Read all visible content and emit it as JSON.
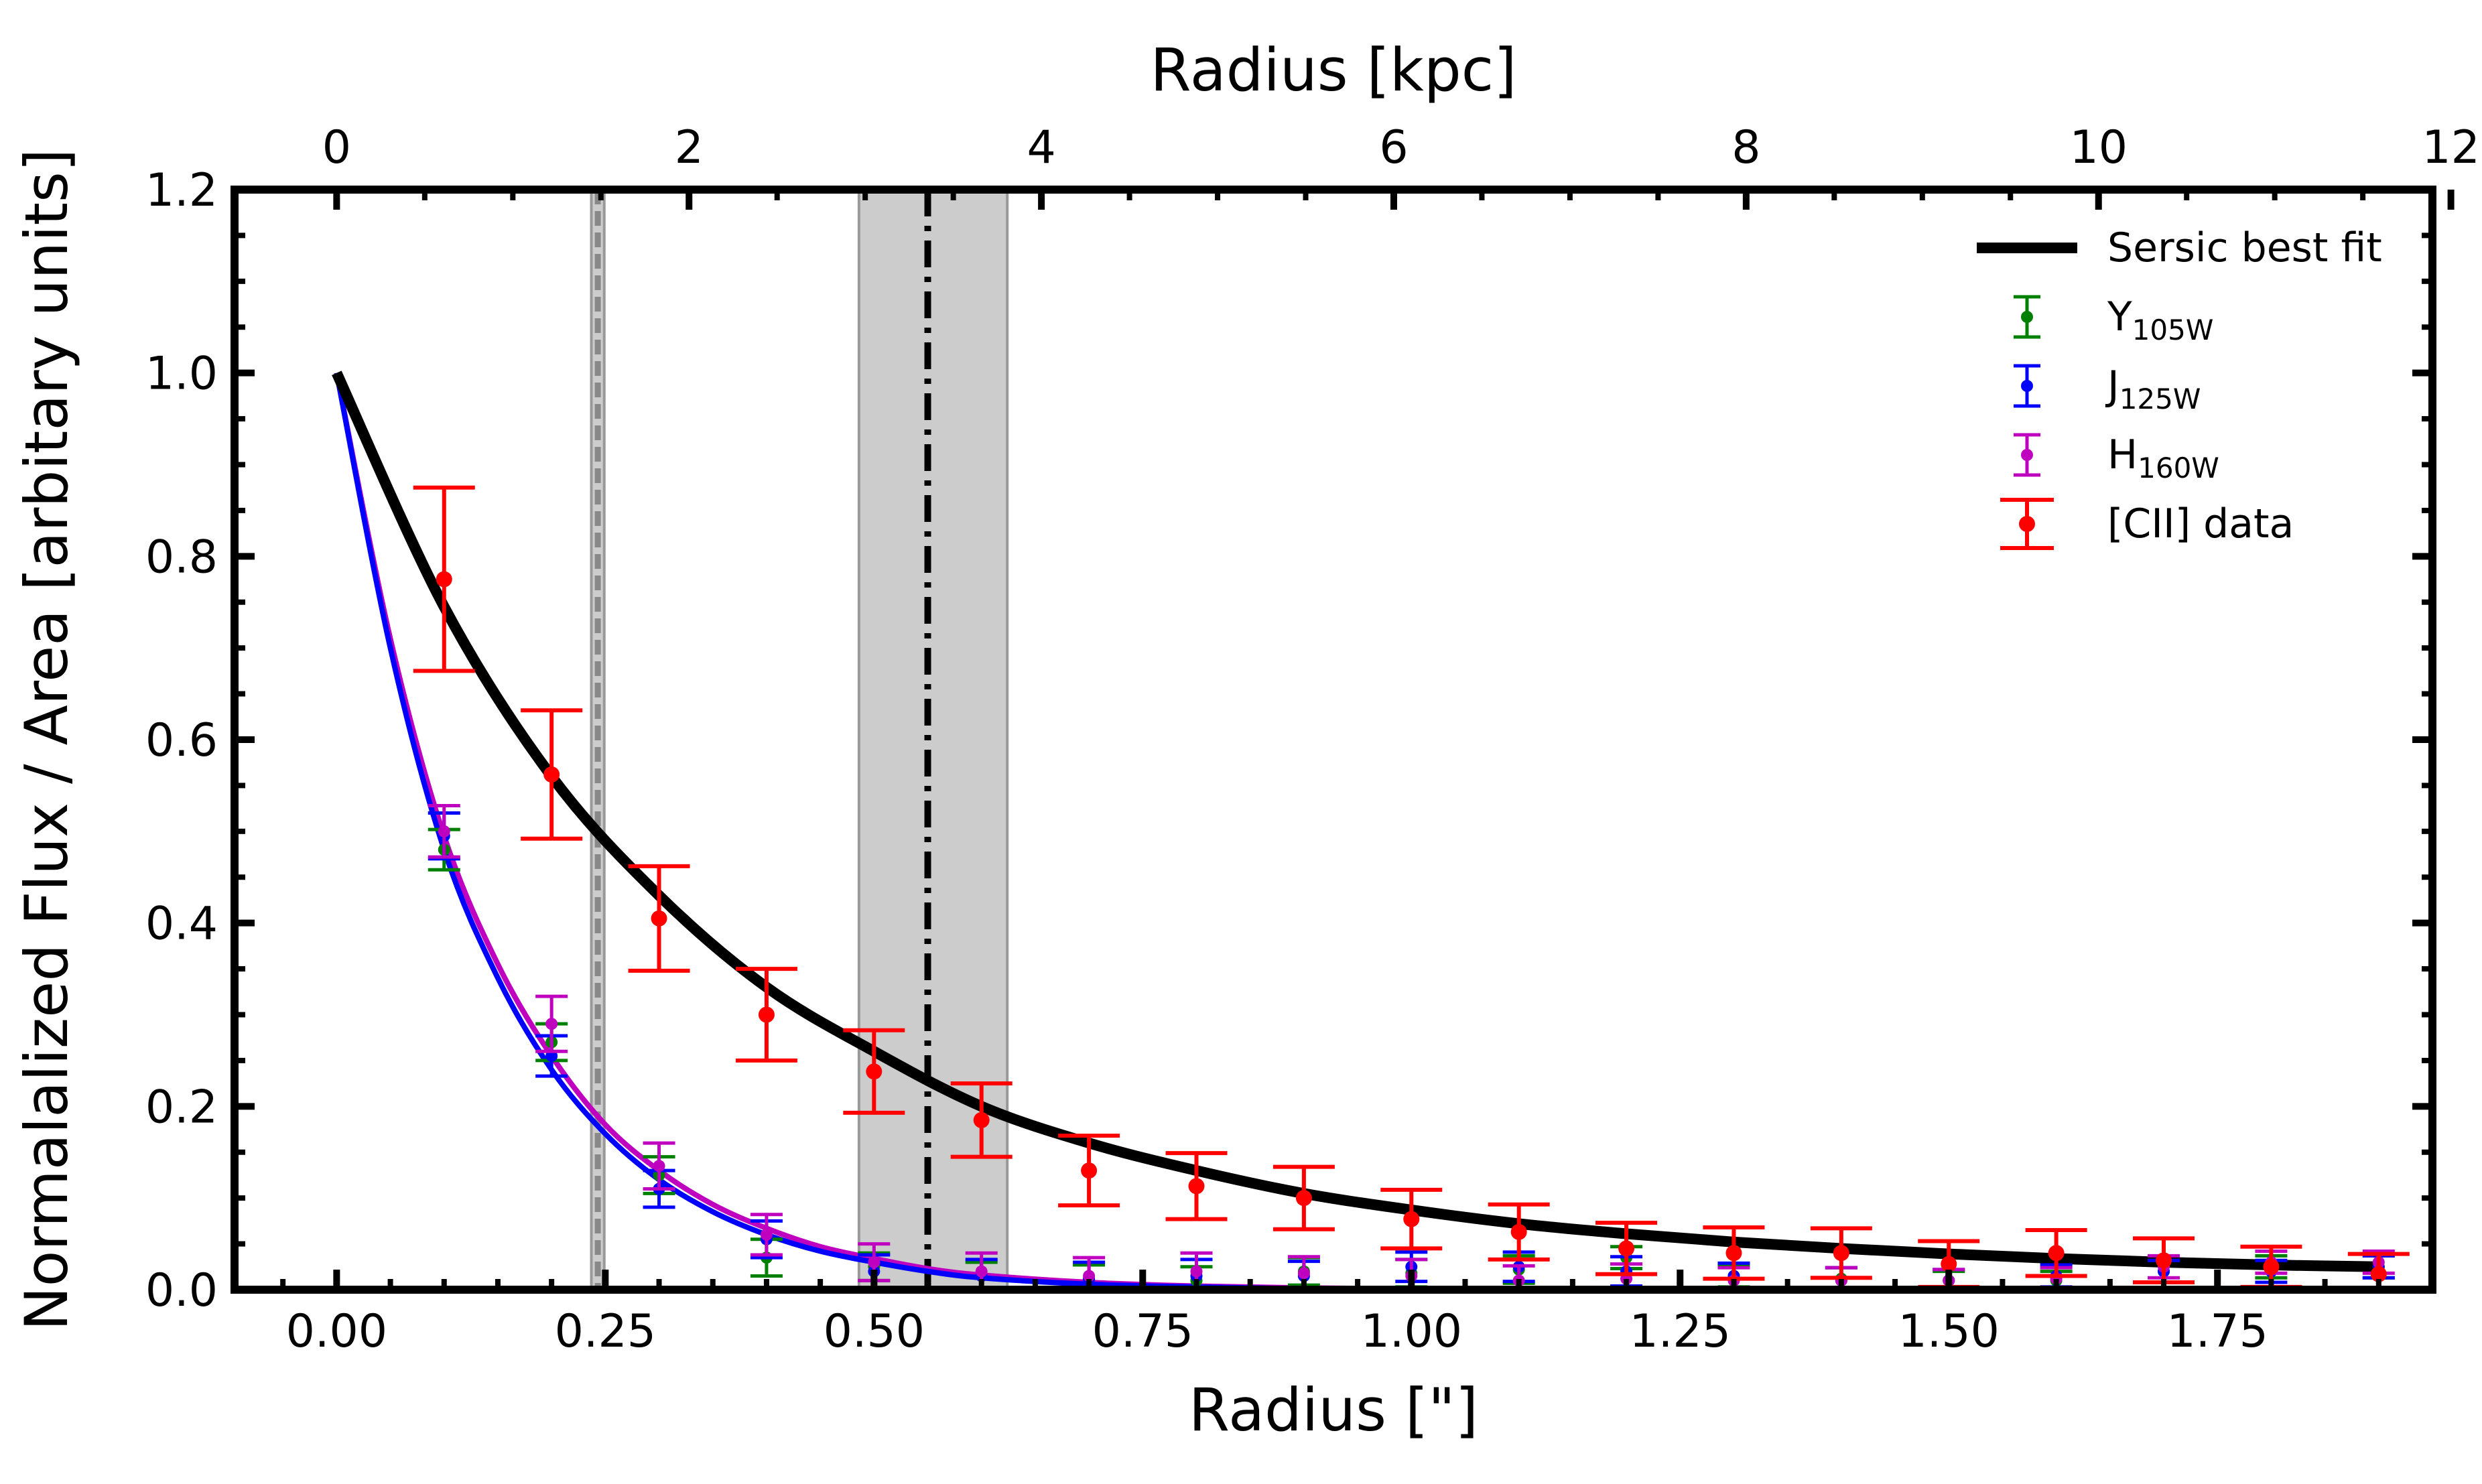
{
  "chart_data": {
    "type": "scatter",
    "xlabel": "Radius [\"]",
    "ylabel": "Normalalized Flux / Area [arbitary units]",
    "x2label": "Radius [kpc]",
    "xlim": [
      -0.095,
      1.95
    ],
    "ylim": [
      0.0,
      1.2
    ],
    "x2_per_x": 6.1,
    "x_ticks": [
      "0.00",
      "0.25",
      "0.50",
      "0.75",
      "1.00",
      "1.25",
      "1.50",
      "1.75"
    ],
    "x_tick_values": [
      0.0,
      0.25,
      0.5,
      0.75,
      1.0,
      1.25,
      1.5,
      1.75
    ],
    "y_ticks": [
      "0.0",
      "0.2",
      "0.4",
      "0.6",
      "0.8",
      "1.0",
      "1.2"
    ],
    "y_tick_values": [
      0.0,
      0.2,
      0.4,
      0.6,
      0.8,
      1.0,
      1.2
    ],
    "x2_ticks": [
      "0",
      "2",
      "4",
      "6",
      "8",
      "10",
      "12"
    ],
    "x2_tick_values": [
      0,
      2,
      4,
      6,
      8,
      10,
      12
    ],
    "legend_position": "top-right",
    "legend": [
      {
        "label": "Sersic best fit",
        "sub": "",
        "color": "#000000",
        "kind": "line"
      },
      {
        "label": "Y",
        "sub": "105W",
        "color": "#008000",
        "kind": "errorbar"
      },
      {
        "label": "J",
        "sub": "125W",
        "color": "#0000ff",
        "kind": "errorbar"
      },
      {
        "label": "H",
        "sub": "160W",
        "color": "#bf00bf",
        "kind": "errorbar"
      },
      {
        "label": "[CII] data",
        "sub": "",
        "color": "#ff0000",
        "kind": "errorbar"
      }
    ],
    "vertical_lines": [
      {
        "x": 0.243,
        "style": "dashed",
        "color": "#888888",
        "band": [
          0.237,
          0.249
        ]
      },
      {
        "x": 0.55,
        "style": "dashdot",
        "color": "#000000",
        "band": [
          0.486,
          0.624
        ]
      }
    ],
    "series": [
      {
        "name": "[CII] data",
        "color": "#ff0000",
        "x": [
          0.1,
          0.2,
          0.3,
          0.4,
          0.5,
          0.6,
          0.7,
          0.8,
          0.9,
          1.0,
          1.1,
          1.2,
          1.3,
          1.4,
          1.5,
          1.6,
          1.7,
          1.8,
          1.9
        ],
        "y": [
          0.775,
          0.562,
          0.405,
          0.3,
          0.238,
          0.185,
          0.13,
          0.113,
          0.1,
          0.077,
          0.063,
          0.045,
          0.04,
          0.04,
          0.028,
          0.04,
          0.032,
          0.025,
          0.017
        ],
        "err": [
          0.1,
          0.07,
          0.057,
          0.05,
          0.045,
          0.04,
          0.038,
          0.036,
          0.034,
          0.032,
          0.03,
          0.028,
          0.028,
          0.027,
          0.025,
          0.025,
          0.024,
          0.022,
          0.022
        ]
      },
      {
        "name": "Y105W",
        "color": "#008000",
        "x": [
          0.1,
          0.2,
          0.3,
          0.4,
          0.5,
          0.6,
          0.7,
          0.8,
          0.9,
          1.0,
          1.1,
          1.2,
          1.3,
          1.4,
          1.5,
          1.6,
          1.7,
          1.8,
          1.9
        ],
        "y": [
          0.48,
          0.27,
          0.125,
          0.035,
          0.025,
          0.015,
          0.012,
          0.01,
          0.02,
          0.018,
          0.022,
          0.035,
          0.015,
          0.012,
          0.01,
          0.01,
          0.02,
          0.025,
          0.025
        ],
        "err": [
          0.022,
          0.02,
          0.02,
          0.02,
          0.015,
          0.015,
          0.015,
          0.015,
          0.015,
          0.015,
          0.015,
          0.012,
          0.012,
          0.012,
          0.01,
          0.01,
          0.012,
          0.012,
          0.012
        ]
      },
      {
        "name": "J125W",
        "color": "#0000ff",
        "x": [
          0.1,
          0.2,
          0.3,
          0.4,
          0.5,
          0.6,
          0.7,
          0.8,
          0.9,
          1.0,
          1.1,
          1.2,
          1.3,
          1.4,
          1.5,
          1.6,
          1.7,
          1.8,
          1.9
        ],
        "y": [
          0.495,
          0.255,
          0.11,
          0.055,
          0.02,
          0.015,
          0.012,
          0.015,
          0.015,
          0.025,
          0.025,
          0.02,
          0.015,
          0.01,
          0.01,
          0.015,
          0.02,
          0.02,
          0.025
        ],
        "err": [
          0.025,
          0.022,
          0.02,
          0.02,
          0.018,
          0.018,
          0.018,
          0.018,
          0.016,
          0.016,
          0.016,
          0.016,
          0.014,
          0.014,
          0.012,
          0.012,
          0.012,
          0.012,
          0.012
        ]
      },
      {
        "name": "H160W",
        "color": "#bf00bf",
        "x": [
          0.1,
          0.2,
          0.3,
          0.4,
          0.5,
          0.6,
          0.7,
          0.8,
          0.9,
          1.0,
          1.1,
          1.2,
          1.3,
          1.4,
          1.5,
          1.6,
          1.7,
          1.8,
          1.9
        ],
        "y": [
          0.5,
          0.29,
          0.135,
          0.06,
          0.03,
          0.02,
          0.015,
          0.02,
          0.018,
          0.015,
          0.01,
          0.012,
          0.01,
          0.01,
          0.01,
          0.012,
          0.025,
          0.03,
          0.03
        ],
        "err": [
          0.028,
          0.03,
          0.025,
          0.022,
          0.02,
          0.02,
          0.02,
          0.02,
          0.018,
          0.018,
          0.016,
          0.016,
          0.014,
          0.014,
          0.012,
          0.012,
          0.012,
          0.012,
          0.012
        ]
      }
    ],
    "models": [
      {
        "name": "Sersic best fit",
        "color": "#000000",
        "x": [
          0.0,
          0.1,
          0.2,
          0.3,
          0.4,
          0.5,
          0.6,
          0.7,
          0.8,
          0.9,
          1.0,
          1.1,
          1.2,
          1.3,
          1.4,
          1.5,
          1.6,
          1.7,
          1.8,
          1.9
        ],
        "y": [
          1.0,
          0.745,
          0.56,
          0.43,
          0.33,
          0.26,
          0.2,
          0.16,
          0.13,
          0.105,
          0.087,
          0.072,
          0.061,
          0.052,
          0.045,
          0.039,
          0.034,
          0.03,
          0.027,
          0.025
        ]
      },
      {
        "name": "J125W fit",
        "color": "#0000ff",
        "x": [
          0.0,
          0.05,
          0.1,
          0.15,
          0.2,
          0.25,
          0.3,
          0.35,
          0.4,
          0.45,
          0.5,
          0.55,
          0.6,
          0.7,
          0.8,
          0.9,
          1.0
        ],
        "y": [
          1.0,
          0.7,
          0.48,
          0.34,
          0.24,
          0.17,
          0.12,
          0.085,
          0.06,
          0.042,
          0.03,
          0.02,
          0.013,
          0.006,
          0.003,
          0.001,
          0.0
        ]
      },
      {
        "name": "H160W fit",
        "color": "#bf00bf",
        "x": [
          0.0,
          0.05,
          0.1,
          0.15,
          0.2,
          0.25,
          0.3,
          0.35,
          0.4,
          0.45,
          0.5,
          0.55,
          0.6,
          0.7,
          0.8,
          0.9,
          1.0
        ],
        "y": [
          1.0,
          0.71,
          0.495,
          0.355,
          0.255,
          0.18,
          0.13,
          0.093,
          0.067,
          0.047,
          0.034,
          0.023,
          0.016,
          0.008,
          0.004,
          0.002,
          0.001
        ]
      }
    ]
  }
}
